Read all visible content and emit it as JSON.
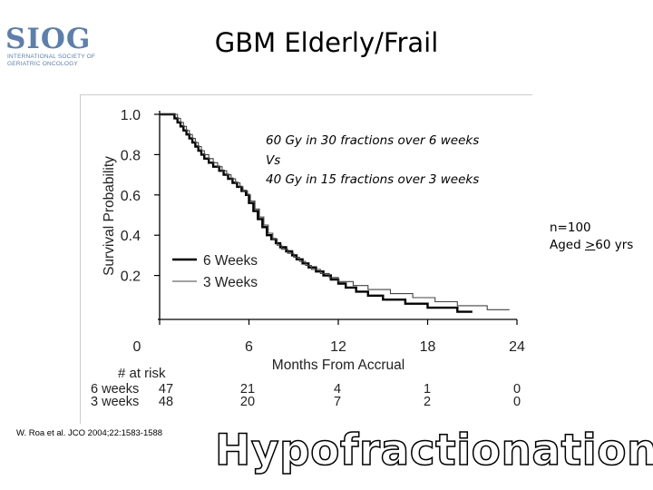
{
  "header": {
    "logo_text": "SIOG",
    "logo_subtitle": "INTERNATIONAL SOCIETY OF GERIATRIC ONCOLOGY",
    "title": "GBM Elderly/Frail"
  },
  "annotation": {
    "line1": "60 Gy in 30 fractions over 6 weeks",
    "line2": "Vs",
    "line3": "40 Gy in 15 fractions over 3 weeks"
  },
  "side_note": {
    "n": "n=100",
    "aged_prefix": "Aged ",
    "aged_symbol": ">",
    "aged_suffix": "60 yrs"
  },
  "citation": "W. Roa et al. JCO 2004;22:1583-1588",
  "footer_word": "Hypofractionation",
  "colors": {
    "logo": "#5b7fae",
    "six_weeks": "#000000",
    "three_weeks": "#444444"
  },
  "chart_data": {
    "type": "line",
    "title": "",
    "xlabel": "Months From Accrual",
    "ylabel": "Survival Probability",
    "xlim": [
      0,
      24
    ],
    "ylim": [
      0,
      1.0
    ],
    "x_ticks": [
      0,
      6,
      12,
      18,
      24
    ],
    "x_tick_labels": [
      "0",
      "6",
      "12",
      "18",
      "24"
    ],
    "y_ticks": [
      0.2,
      0.4,
      0.6,
      0.8,
      1.0
    ],
    "y_tick_labels": [
      "0.2",
      "0.4",
      "0.6",
      "0.8",
      "1.0"
    ],
    "legend_position": "left-middle",
    "series": [
      {
        "name": "6 Weeks",
        "style": "thick",
        "points": [
          [
            0,
            1.0
          ],
          [
            0.9,
            1.0
          ],
          [
            1.0,
            0.98
          ],
          [
            1.2,
            0.96
          ],
          [
            1.4,
            0.94
          ],
          [
            1.6,
            0.92
          ],
          [
            1.8,
            0.9
          ],
          [
            2.0,
            0.88
          ],
          [
            2.2,
            0.86
          ],
          [
            2.4,
            0.84
          ],
          [
            2.6,
            0.82
          ],
          [
            2.8,
            0.8
          ],
          [
            3.0,
            0.78
          ],
          [
            3.3,
            0.76
          ],
          [
            3.6,
            0.74
          ],
          [
            4.0,
            0.72
          ],
          [
            4.3,
            0.7
          ],
          [
            4.6,
            0.68
          ],
          [
            4.9,
            0.66
          ],
          [
            5.2,
            0.64
          ],
          [
            5.5,
            0.62
          ],
          [
            5.8,
            0.6
          ],
          [
            6.0,
            0.56
          ],
          [
            6.3,
            0.52
          ],
          [
            6.6,
            0.48
          ],
          [
            6.9,
            0.44
          ],
          [
            7.2,
            0.4
          ],
          [
            7.5,
            0.38
          ],
          [
            7.8,
            0.36
          ],
          [
            8.1,
            0.34
          ],
          [
            8.5,
            0.32
          ],
          [
            8.9,
            0.3
          ],
          [
            9.2,
            0.28
          ],
          [
            9.6,
            0.26
          ],
          [
            10.0,
            0.24
          ],
          [
            10.5,
            0.22
          ],
          [
            11.0,
            0.2
          ],
          [
            11.5,
            0.18
          ],
          [
            12.0,
            0.16
          ],
          [
            12.5,
            0.14
          ],
          [
            13.2,
            0.12
          ],
          [
            14.0,
            0.1
          ],
          [
            15.0,
            0.08
          ],
          [
            16.5,
            0.06
          ],
          [
            18.0,
            0.04
          ],
          [
            20.0,
            0.02
          ],
          [
            21.0,
            0.02
          ]
        ]
      },
      {
        "name": "3 Weeks",
        "style": "thin",
        "points": [
          [
            0,
            1.0
          ],
          [
            1.0,
            1.0
          ],
          [
            1.2,
            0.98
          ],
          [
            1.4,
            0.96
          ],
          [
            1.6,
            0.94
          ],
          [
            1.8,
            0.92
          ],
          [
            2.0,
            0.9
          ],
          [
            2.2,
            0.88
          ],
          [
            2.4,
            0.86
          ],
          [
            2.6,
            0.84
          ],
          [
            2.8,
            0.82
          ],
          [
            3.0,
            0.8
          ],
          [
            3.3,
            0.78
          ],
          [
            3.6,
            0.76
          ],
          [
            3.9,
            0.74
          ],
          [
            4.2,
            0.72
          ],
          [
            4.5,
            0.7
          ],
          [
            4.8,
            0.68
          ],
          [
            5.1,
            0.66
          ],
          [
            5.4,
            0.64
          ],
          [
            5.6,
            0.62
          ],
          [
            5.9,
            0.6
          ],
          [
            6.1,
            0.57
          ],
          [
            6.4,
            0.53
          ],
          [
            6.7,
            0.49
          ],
          [
            7.0,
            0.45
          ],
          [
            7.3,
            0.41
          ],
          [
            7.6,
            0.38
          ],
          [
            7.9,
            0.35
          ],
          [
            8.2,
            0.33
          ],
          [
            8.6,
            0.31
          ],
          [
            9.0,
            0.29
          ],
          [
            9.4,
            0.27
          ],
          [
            9.8,
            0.25
          ],
          [
            10.2,
            0.23
          ],
          [
            10.8,
            0.21
          ],
          [
            11.4,
            0.19
          ],
          [
            12.0,
            0.17
          ],
          [
            13.0,
            0.15
          ],
          [
            14.0,
            0.13
          ],
          [
            15.5,
            0.11
          ],
          [
            17.0,
            0.09
          ],
          [
            18.5,
            0.07
          ],
          [
            20.0,
            0.05
          ],
          [
            22.0,
            0.03
          ],
          [
            23.5,
            0.03
          ]
        ]
      }
    ],
    "risk_table": {
      "header": "# at risk",
      "times": [
        0,
        6,
        12,
        18,
        24
      ],
      "rows": [
        {
          "label": "6 weeks",
          "counts": [
            "47",
            "21",
            "4",
            "1",
            "0"
          ]
        },
        {
          "label": "3 weeks",
          "counts": [
            "48",
            "20",
            "7",
            "2",
            "0"
          ]
        }
      ]
    }
  }
}
